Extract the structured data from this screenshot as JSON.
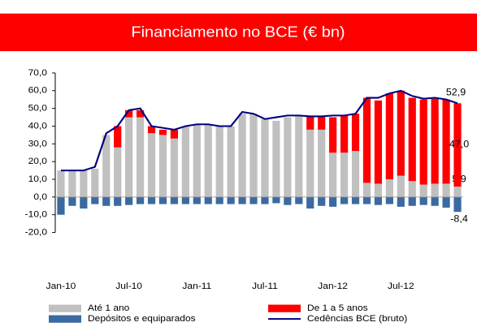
{
  "chart_data": {
    "type": "bar",
    "title": "Financiamento no BCE (€ bn)",
    "categories": [
      "Jan-10",
      null,
      null,
      null,
      null,
      null,
      "Jul-10",
      null,
      null,
      null,
      null,
      null,
      "Jan-11",
      null,
      null,
      null,
      null,
      null,
      "Jul-11",
      null,
      null,
      null,
      null,
      null,
      "Jan-12",
      null,
      null,
      null,
      null,
      null,
      "Jul-12",
      null,
      null,
      null,
      null,
      null
    ],
    "ylim": [
      -20,
      70
    ],
    "yticks": [
      {
        "value": -20,
        "label": "-20,0"
      },
      {
        "value": -10,
        "label": "-10,0"
      },
      {
        "value": 0,
        "label": "0,0"
      },
      {
        "value": 10,
        "label": "10,0"
      },
      {
        "value": 20,
        "label": "20,0"
      },
      {
        "value": 30,
        "label": "30,0"
      },
      {
        "value": 40,
        "label": "40,0"
      },
      {
        "value": 50,
        "label": "50,0"
      },
      {
        "value": 60,
        "label": "60,0"
      },
      {
        "value": 70,
        "label": "70,0"
      }
    ],
    "grid": false,
    "legend": "bottom",
    "series": [
      {
        "name": "Até 1 ano",
        "type": "bar",
        "color": "#c0c0c0",
        "values": [
          15,
          15,
          15,
          16,
          35,
          28,
          45,
          45,
          36,
          35,
          33,
          40,
          41,
          41,
          40,
          40,
          47,
          47,
          44,
          43,
          45,
          46,
          38,
          38,
          25,
          25,
          26,
          8,
          7.5,
          10,
          12,
          9,
          7,
          7.5,
          7.5,
          5.9
        ],
        "value_labels": [
          null,
          null,
          null,
          null,
          null,
          null,
          null,
          null,
          null,
          null,
          null,
          null,
          null,
          null,
          null,
          null,
          null,
          null,
          null,
          null,
          null,
          null,
          null,
          null,
          null,
          null,
          null,
          null,
          null,
          null,
          null,
          null,
          null,
          null,
          null,
          "5,9"
        ]
      },
      {
        "name": "De 1 a 5 anos",
        "type": "bar",
        "color": "#ff0000",
        "values": [
          0,
          0,
          0,
          0,
          0,
          12,
          4,
          4,
          4,
          3,
          5,
          0,
          0,
          0,
          0,
          0,
          0,
          0,
          0,
          0,
          0,
          0,
          7.5,
          7.5,
          20,
          21,
          21,
          48,
          47,
          48.5,
          48,
          47,
          48,
          48,
          47.5,
          47
        ],
        "value_labels": [
          null,
          null,
          null,
          null,
          null,
          null,
          null,
          null,
          null,
          null,
          null,
          null,
          null,
          null,
          null,
          null,
          null,
          null,
          null,
          null,
          null,
          null,
          null,
          null,
          null,
          null,
          null,
          null,
          null,
          null,
          null,
          null,
          null,
          null,
          null,
          "47,0"
        ]
      },
      {
        "name": "Depósitos e equiparados",
        "type": "bar",
        "color": "#3b6aa0",
        "values": [
          -10,
          -5,
          -6.5,
          -4,
          -5,
          -5,
          -4.5,
          -4,
          -4,
          -4,
          -4,
          -4,
          -4,
          -4,
          -4,
          -4,
          -4,
          -4,
          -4,
          -3.5,
          -4.5,
          -4,
          -6.5,
          -5,
          -5.5,
          -4,
          -4,
          -4,
          -4.5,
          -4,
          -5.5,
          -5,
          -4.5,
          -5,
          -6,
          -8.4
        ],
        "value_labels": [
          null,
          null,
          null,
          null,
          null,
          null,
          null,
          null,
          null,
          null,
          null,
          null,
          null,
          null,
          null,
          null,
          null,
          null,
          null,
          null,
          null,
          null,
          null,
          null,
          null,
          null,
          null,
          null,
          null,
          null,
          null,
          null,
          null,
          null,
          null,
          "-8,4"
        ]
      },
      {
        "name": "Cedências BCE (bruto)",
        "type": "line",
        "color": "#000080",
        "values": [
          15,
          15,
          15,
          17,
          36,
          40,
          49,
          50,
          40,
          39,
          38,
          40,
          41,
          41,
          40,
          40,
          48,
          47,
          44,
          45,
          46,
          46,
          45.5,
          45.5,
          46,
          46,
          47,
          56,
          56,
          58.5,
          60,
          57,
          55.5,
          56,
          55,
          52.9
        ],
        "value_labels": [
          null,
          null,
          null,
          null,
          null,
          null,
          null,
          null,
          null,
          null,
          null,
          null,
          null,
          null,
          null,
          null,
          null,
          null,
          null,
          null,
          null,
          null,
          null,
          null,
          null,
          null,
          null,
          null,
          null,
          null,
          null,
          null,
          null,
          null,
          null,
          "52,9"
        ]
      }
    ]
  }
}
